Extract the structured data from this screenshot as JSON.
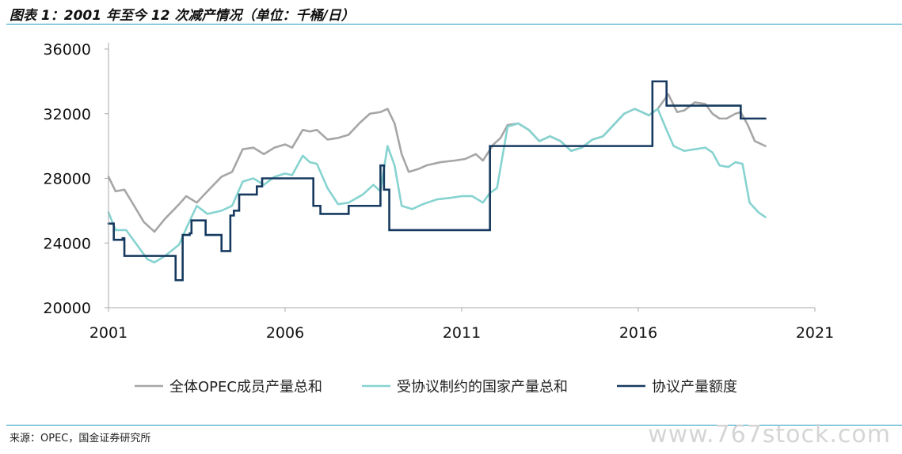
{
  "title": "图表 1：2001 年至今 12 次减产情况（单位：千桶/日）",
  "source": "来源：OPEC，国金证券研究所",
  "watermark": "www.767stock.com",
  "colors": {
    "accent_line": "#1f9bc4",
    "series_total": "#a6a6a6",
    "series_constrained": "#86d3d0",
    "series_quota": "#163a5f"
  },
  "chart_data": {
    "type": "line",
    "title": "",
    "xlabel": "",
    "ylabel": "",
    "xlim": [
      2001,
      2021
    ],
    "ylim": [
      20000,
      36000
    ],
    "x_ticks": [
      "2001",
      "2006",
      "2011",
      "2016",
      "2021"
    ],
    "y_ticks": [
      "20000",
      "24000",
      "28000",
      "32000",
      "36000"
    ],
    "grid": false,
    "legend_position": "bottom",
    "series": [
      {
        "name": "全体OPEC成员产量总和",
        "color": "#a6a6a6",
        "points": [
          [
            2001.0,
            28100
          ],
          [
            2001.2,
            27200
          ],
          [
            2001.45,
            27300
          ],
          [
            2001.7,
            26400
          ],
          [
            2002.0,
            25300
          ],
          [
            2002.3,
            24700
          ],
          [
            2002.6,
            25500
          ],
          [
            2003.0,
            26400
          ],
          [
            2003.2,
            26900
          ],
          [
            2003.5,
            26500
          ],
          [
            2003.8,
            27200
          ],
          [
            2004.2,
            28100
          ],
          [
            2004.5,
            28400
          ],
          [
            2004.8,
            29800
          ],
          [
            2005.1,
            29900
          ],
          [
            2005.4,
            29500
          ],
          [
            2005.7,
            29900
          ],
          [
            2006.0,
            30100
          ],
          [
            2006.2,
            29900
          ],
          [
            2006.5,
            31000
          ],
          [
            2006.7,
            30900
          ],
          [
            2006.9,
            31000
          ],
          [
            2007.2,
            30400
          ],
          [
            2007.5,
            30500
          ],
          [
            2007.8,
            30700
          ],
          [
            2008.1,
            31400
          ],
          [
            2008.4,
            32000
          ],
          [
            2008.7,
            32100
          ],
          [
            2008.9,
            32300
          ],
          [
            2009.1,
            31400
          ],
          [
            2009.3,
            29500
          ],
          [
            2009.5,
            28400
          ],
          [
            2009.8,
            28600
          ],
          [
            2010.0,
            28800
          ],
          [
            2010.4,
            29000
          ],
          [
            2010.8,
            29100
          ],
          [
            2011.1,
            29200
          ],
          [
            2011.4,
            29500
          ],
          [
            2011.6,
            29100
          ],
          [
            2011.9,
            30100
          ],
          [
            2012.1,
            30500
          ],
          [
            2012.3,
            31300
          ],
          [
            2012.6,
            31400
          ],
          [
            2012.9,
            31000
          ],
          [
            2013.2,
            30300
          ],
          [
            2013.5,
            30600
          ],
          [
            2013.8,
            30300
          ],
          [
            2014.1,
            29700
          ],
          [
            2014.4,
            29900
          ],
          [
            2014.7,
            30400
          ],
          [
            2015.0,
            30600
          ],
          [
            2015.3,
            31300
          ],
          [
            2015.6,
            32000
          ],
          [
            2015.9,
            32300
          ],
          [
            2016.1,
            32100
          ],
          [
            2016.3,
            31900
          ],
          [
            2016.55,
            32300
          ],
          [
            2016.85,
            33200
          ],
          [
            2017.1,
            32100
          ],
          [
            2017.3,
            32200
          ],
          [
            2017.6,
            32700
          ],
          [
            2017.9,
            32600
          ],
          [
            2018.1,
            32000
          ],
          [
            2018.3,
            31700
          ],
          [
            2018.5,
            31700
          ],
          [
            2018.75,
            32000
          ],
          [
            2018.9,
            32100
          ],
          [
            2019.1,
            31300
          ],
          [
            2019.3,
            30300
          ],
          [
            2019.6,
            30000
          ]
        ]
      },
      {
        "name": "受协议制约的国家产量总和",
        "color": "#86d3d0",
        "points": [
          [
            2001.0,
            25900
          ],
          [
            2001.2,
            24800
          ],
          [
            2001.5,
            24800
          ],
          [
            2001.8,
            23900
          ],
          [
            2002.1,
            23000
          ],
          [
            2002.3,
            22800
          ],
          [
            2002.6,
            23200
          ],
          [
            2003.0,
            23900
          ],
          [
            2003.2,
            24900
          ],
          [
            2003.5,
            26300
          ],
          [
            2003.8,
            25800
          ],
          [
            2004.2,
            26000
          ],
          [
            2004.5,
            26300
          ],
          [
            2004.8,
            27800
          ],
          [
            2005.1,
            28000
          ],
          [
            2005.4,
            27600
          ],
          [
            2005.7,
            28100
          ],
          [
            2006.0,
            28300
          ],
          [
            2006.2,
            28200
          ],
          [
            2006.5,
            29400
          ],
          [
            2006.7,
            29000
          ],
          [
            2006.9,
            28900
          ],
          [
            2007.2,
            27400
          ],
          [
            2007.5,
            26400
          ],
          [
            2007.8,
            26500
          ],
          [
            2008.2,
            27000
          ],
          [
            2008.5,
            27600
          ],
          [
            2008.7,
            27200
          ],
          [
            2008.9,
            30000
          ],
          [
            2009.1,
            28800
          ],
          [
            2009.3,
            26300
          ],
          [
            2009.6,
            26100
          ],
          [
            2009.9,
            26400
          ],
          [
            2010.3,
            26700
          ],
          [
            2010.7,
            26800
          ],
          [
            2011.0,
            26900
          ],
          [
            2011.3,
            26900
          ],
          [
            2011.6,
            26500
          ],
          [
            2011.8,
            27100
          ],
          [
            2012.0,
            27400
          ],
          [
            2012.15,
            29300
          ],
          [
            2012.3,
            31200
          ],
          [
            2012.6,
            31400
          ],
          [
            2012.9,
            31000
          ],
          [
            2013.2,
            30300
          ],
          [
            2013.5,
            30600
          ],
          [
            2013.8,
            30300
          ],
          [
            2014.1,
            29700
          ],
          [
            2014.4,
            29900
          ],
          [
            2014.7,
            30400
          ],
          [
            2015.0,
            30600
          ],
          [
            2015.3,
            31300
          ],
          [
            2015.6,
            32000
          ],
          [
            2015.9,
            32300
          ],
          [
            2016.1,
            32100
          ],
          [
            2016.3,
            31900
          ],
          [
            2016.55,
            32300
          ],
          [
            2016.8,
            31000
          ],
          [
            2017.0,
            30000
          ],
          [
            2017.3,
            29700
          ],
          [
            2017.6,
            29800
          ],
          [
            2017.9,
            29900
          ],
          [
            2018.1,
            29600
          ],
          [
            2018.3,
            28800
          ],
          [
            2018.55,
            28700
          ],
          [
            2018.75,
            29000
          ],
          [
            2018.95,
            28900
          ],
          [
            2019.15,
            26500
          ],
          [
            2019.4,
            25900
          ],
          [
            2019.6,
            25600
          ]
        ]
      },
      {
        "name": "协议产量额度",
        "color": "#163a5f",
        "points": [
          [
            2001.0,
            25200
          ],
          [
            2001.15,
            25200
          ],
          [
            2001.15,
            24200
          ],
          [
            2001.4,
            24200
          ],
          [
            2001.4,
            24300
          ],
          [
            2001.45,
            24300
          ],
          [
            2001.45,
            23200
          ],
          [
            2002.9,
            23200
          ],
          [
            2002.9,
            21700
          ],
          [
            2003.1,
            21700
          ],
          [
            2003.1,
            24500
          ],
          [
            2003.3,
            24500
          ],
          [
            2003.3,
            24600
          ],
          [
            2003.35,
            24600
          ],
          [
            2003.35,
            25400
          ],
          [
            2003.75,
            25400
          ],
          [
            2003.75,
            24500
          ],
          [
            2004.2,
            24500
          ],
          [
            2004.2,
            23500
          ],
          [
            2004.45,
            23500
          ],
          [
            2004.45,
            25700
          ],
          [
            2004.55,
            25700
          ],
          [
            2004.55,
            26000
          ],
          [
            2004.7,
            26000
          ],
          [
            2004.7,
            27000
          ],
          [
            2005.0,
            27000
          ],
          [
            2005.0,
            27000
          ],
          [
            2005.2,
            27000
          ],
          [
            2005.2,
            27500
          ],
          [
            2005.35,
            27500
          ],
          [
            2005.35,
            28000
          ],
          [
            2006.8,
            28000
          ],
          [
            2006.8,
            26300
          ],
          [
            2007.0,
            26300
          ],
          [
            2007.0,
            25800
          ],
          [
            2007.8,
            25800
          ],
          [
            2007.8,
            26300
          ],
          [
            2008.7,
            26300
          ],
          [
            2008.7,
            28800
          ],
          [
            2008.8,
            28800
          ],
          [
            2008.8,
            27300
          ],
          [
            2008.95,
            27300
          ],
          [
            2008.95,
            24800
          ],
          [
            2011.8,
            24800
          ],
          [
            2011.8,
            30000
          ],
          [
            2016.4,
            30000
          ],
          [
            2016.4,
            34000
          ],
          [
            2016.8,
            34000
          ],
          [
            2016.8,
            32500
          ],
          [
            2018.9,
            32500
          ],
          [
            2018.9,
            31700
          ],
          [
            2019.6,
            31700
          ]
        ]
      }
    ]
  }
}
